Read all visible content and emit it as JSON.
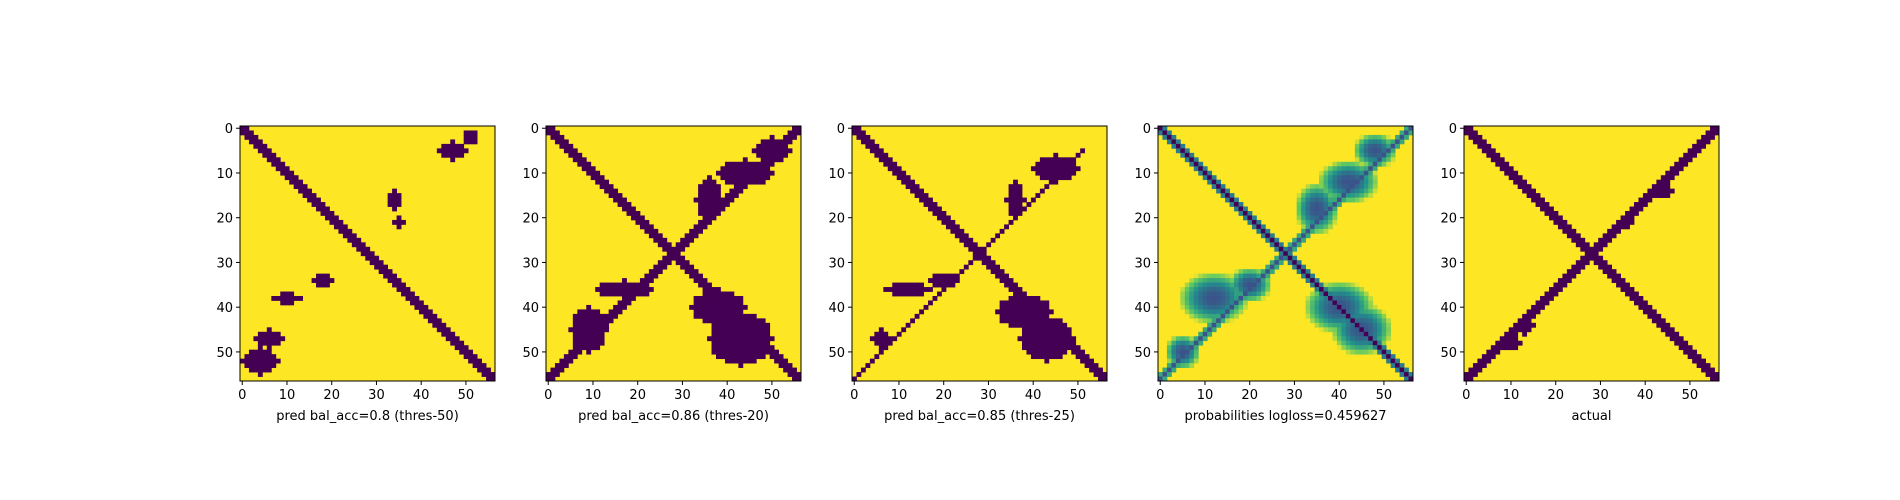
{
  "chart_data": [
    {
      "type": "heatmap",
      "xlabel": "pred bal_acc=0.8 (thres-50)",
      "matrix_size": 57,
      "xticks": [
        0,
        10,
        20,
        30,
        40,
        50
      ],
      "yticks": [
        0,
        10,
        20,
        30,
        40,
        50
      ],
      "colormap": "viridis",
      "value_range": [
        0,
        1
      ],
      "description_values": "binary: 1 = yellow background, 0 = dark purple",
      "diagonal": {
        "offset_from_main": 0,
        "half_width": 1.2
      },
      "anti_diagonal": null,
      "blobs": [
        {
          "cx": 4,
          "cy": 52,
          "rx": 4,
          "ry": 3
        },
        {
          "cx": 6,
          "cy": 47,
          "rx": 3,
          "ry": 2
        },
        {
          "cx": 10,
          "cy": 38,
          "rx": 3,
          "ry": 1.2
        },
        {
          "cx": 18,
          "cy": 34,
          "rx": 2,
          "ry": 1.2
        },
        {
          "cx": 34,
          "cy": 16,
          "rx": 1.2,
          "ry": 2.5
        },
        {
          "cx": 35,
          "cy": 21,
          "rx": 1.5,
          "ry": 1
        },
        {
          "cx": 47,
          "cy": 5,
          "rx": 3,
          "ry": 2
        },
        {
          "cx": 51,
          "cy": 2,
          "rx": 1.5,
          "ry": 1.5
        }
      ]
    },
    {
      "type": "heatmap",
      "xlabel": "pred bal_acc=0.86 (thres-20)",
      "matrix_size": 57,
      "xticks": [
        0,
        10,
        20,
        30,
        40,
        50
      ],
      "yticks": [
        0,
        10,
        20,
        30,
        40,
        50
      ],
      "colormap": "viridis",
      "value_range": [
        0,
        1
      ],
      "diagonal": {
        "offset_from_main": 0,
        "half_width": 1.8
      },
      "anti_diagonal": {
        "half_width": 1.0,
        "from": 0,
        "to": 57
      },
      "blobs": [
        {
          "cx": 9,
          "cy": 45,
          "rx": 4,
          "ry": 5
        },
        {
          "cx": 17,
          "cy": 36,
          "rx": 6,
          "ry": 2
        },
        {
          "cx": 38,
          "cy": 40,
          "rx": 6,
          "ry": 4
        },
        {
          "cx": 43,
          "cy": 47,
          "rx": 7,
          "ry": 6
        },
        {
          "cx": 36,
          "cy": 16,
          "rx": 3,
          "ry": 5
        },
        {
          "cx": 44,
          "cy": 10,
          "rx": 6,
          "ry": 3
        },
        {
          "cx": 50,
          "cy": 5,
          "rx": 4,
          "ry": 3
        }
      ]
    },
    {
      "type": "heatmap",
      "xlabel": "pred bal_acc=0.85 (thres-25)",
      "matrix_size": 57,
      "xticks": [
        0,
        10,
        20,
        30,
        40,
        50
      ],
      "yticks": [
        0,
        10,
        20,
        30,
        40,
        50
      ],
      "colormap": "viridis",
      "value_range": [
        0,
        1
      ],
      "diagonal": {
        "offset_from_main": 0,
        "half_width": 1.8
      },
      "anti_diagonal": {
        "half_width": 0.8,
        "from": 5,
        "to": 57
      },
      "blobs": [
        {
          "cx": 12,
          "cy": 36,
          "rx": 5,
          "ry": 1.5
        },
        {
          "cx": 20,
          "cy": 34,
          "rx": 3,
          "ry": 1.5
        },
        {
          "cx": 38,
          "cy": 41,
          "rx": 6,
          "ry": 4
        },
        {
          "cx": 43,
          "cy": 47,
          "rx": 6,
          "ry": 5
        },
        {
          "cx": 36,
          "cy": 16,
          "rx": 2,
          "ry": 4
        },
        {
          "cx": 45,
          "cy": 9,
          "rx": 5,
          "ry": 3
        },
        {
          "cx": 6,
          "cy": 47,
          "rx": 2,
          "ry": 2
        }
      ]
    },
    {
      "type": "heatmap",
      "xlabel": "probabilities logloss=0.459627",
      "matrix_size": 57,
      "xticks": [
        0,
        10,
        20,
        30,
        40,
        50
      ],
      "yticks": [
        0,
        10,
        20,
        30,
        40,
        50
      ],
      "colormap": "viridis",
      "value_range": [
        0,
        1
      ],
      "continuous": true,
      "diagonal": {
        "offset_from_main": 0,
        "half_width": 1.6
      },
      "anti_diagonal": {
        "half_width": 1.0,
        "from": 0,
        "to": 57
      },
      "blobs": [
        {
          "cx": 12,
          "cy": 38,
          "rx": 8,
          "ry": 6
        },
        {
          "cx": 20,
          "cy": 35,
          "rx": 5,
          "ry": 4
        },
        {
          "cx": 40,
          "cy": 40,
          "rx": 8,
          "ry": 6
        },
        {
          "cx": 45,
          "cy": 45,
          "rx": 7,
          "ry": 6
        },
        {
          "cx": 35,
          "cy": 18,
          "rx": 5,
          "ry": 6
        },
        {
          "cx": 42,
          "cy": 12,
          "rx": 7,
          "ry": 5
        },
        {
          "cx": 48,
          "cy": 5,
          "rx": 5,
          "ry": 4
        },
        {
          "cx": 5,
          "cy": 50,
          "rx": 4,
          "ry": 4
        }
      ]
    },
    {
      "type": "heatmap",
      "xlabel": "actual",
      "matrix_size": 57,
      "xticks": [
        0,
        10,
        20,
        30,
        40,
        50
      ],
      "yticks": [
        0,
        10,
        20,
        30,
        40,
        50
      ],
      "colormap": "viridis",
      "value_range": [
        0,
        1
      ],
      "diagonal": {
        "offset_from_main": 0,
        "half_width": 1.5
      },
      "anti_diagonal": {
        "half_width": 1.2,
        "from": 0,
        "to": 57
      },
      "blobs": [
        {
          "cx": 13,
          "cy": 44,
          "rx": 2,
          "ry": 2
        },
        {
          "cx": 10,
          "cy": 48,
          "rx": 2,
          "ry": 1.5
        },
        {
          "cx": 36,
          "cy": 21,
          "rx": 1.5,
          "ry": 1
        },
        {
          "cx": 44,
          "cy": 14,
          "rx": 2,
          "ry": 1.5
        }
      ]
    }
  ]
}
